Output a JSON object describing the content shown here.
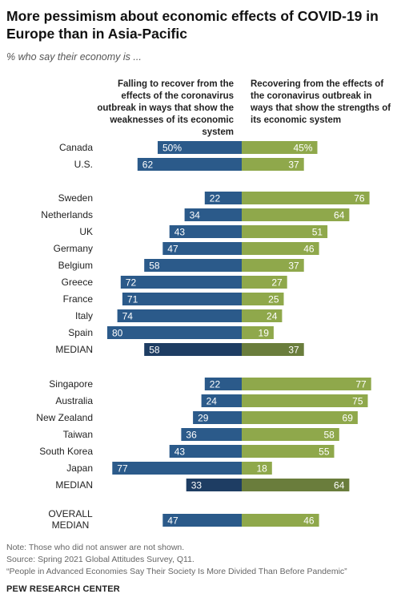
{
  "title": "More pessimism about economic effects of COVID-19 in Europe than in Asia-Pacific",
  "subtitle": "% who say their economy is ...",
  "note": "Note: Those who did not answer are not shown.",
  "source": "Source: Spring 2021 Global Attitudes Survey, Q11.",
  "report": "“People in Advanced Economies Say Their Society Is More Divided Than Before Pandemic”",
  "brand": "PEW RESEARCH CENTER",
  "colors": {
    "failing": "#2b5a8a",
    "failing_median": "#1e3d63",
    "recovering": "#8fa84b",
    "recovering_median": "#6a7d3c"
  },
  "chart_data": {
    "type": "bar",
    "series": [
      {
        "name": "Falling to recover from the effects of the coronavirus outbreak in ways that show the weaknesses of its economic system"
      },
      {
        "name": "Recovering from the effects of the coronavirus outbreak in ways that show the strengths of its economic system"
      }
    ],
    "groups": [
      {
        "rows": [
          {
            "label": "Canada",
            "failing": 50,
            "recovering": 45,
            "failing_label": "50%",
            "recovering_label": "45%"
          },
          {
            "label": "U.S.",
            "failing": 62,
            "recovering": 37,
            "failing_label": "62",
            "recovering_label": "37"
          }
        ]
      },
      {
        "rows": [
          {
            "label": "Sweden",
            "failing": 22,
            "recovering": 76,
            "failing_label": "22",
            "recovering_label": "76"
          },
          {
            "label": "Netherlands",
            "failing": 34,
            "recovering": 64,
            "failing_label": "34",
            "recovering_label": "64"
          },
          {
            "label": "UK",
            "failing": 43,
            "recovering": 51,
            "failing_label": "43",
            "recovering_label": "51"
          },
          {
            "label": "Germany",
            "failing": 47,
            "recovering": 46,
            "failing_label": "47",
            "recovering_label": "46"
          },
          {
            "label": "Belgium",
            "failing": 58,
            "recovering": 37,
            "failing_label": "58",
            "recovering_label": "37"
          },
          {
            "label": "Greece",
            "failing": 72,
            "recovering": 27,
            "failing_label": "72",
            "recovering_label": "27"
          },
          {
            "label": "France",
            "failing": 71,
            "recovering": 25,
            "failing_label": "71",
            "recovering_label": "25"
          },
          {
            "label": "Italy",
            "failing": 74,
            "recovering": 24,
            "failing_label": "74",
            "recovering_label": "24"
          },
          {
            "label": "Spain",
            "failing": 80,
            "recovering": 19,
            "failing_label": "80",
            "recovering_label": "19"
          },
          {
            "label": "MEDIAN",
            "failing": 58,
            "recovering": 37,
            "failing_label": "58",
            "recovering_label": "37",
            "median": true
          }
        ]
      },
      {
        "rows": [
          {
            "label": "Singapore",
            "failing": 22,
            "recovering": 77,
            "failing_label": "22",
            "recovering_label": "77"
          },
          {
            "label": "Australia",
            "failing": 24,
            "recovering": 75,
            "failing_label": "24",
            "recovering_label": "75"
          },
          {
            "label": "New Zealand",
            "failing": 29,
            "recovering": 69,
            "failing_label": "29",
            "recovering_label": "69"
          },
          {
            "label": "Taiwan",
            "failing": 36,
            "recovering": 58,
            "failing_label": "36",
            "recovering_label": "58"
          },
          {
            "label": "South Korea",
            "failing": 43,
            "recovering": 55,
            "failing_label": "43",
            "recovering_label": "55"
          },
          {
            "label": "Japan",
            "failing": 77,
            "recovering": 18,
            "failing_label": "77",
            "recovering_label": "18"
          },
          {
            "label": "MEDIAN",
            "failing": 33,
            "recovering": 64,
            "failing_label": "33",
            "recovering_label": "64",
            "median": true
          }
        ]
      },
      {
        "rows": [
          {
            "label": "OVERALL MEDIAN",
            "label_lines": [
              "OVERALL",
              "MEDIAN"
            ],
            "failing": 47,
            "recovering": 46,
            "failing_label": "47",
            "recovering_label": "46",
            "overall": true
          }
        ]
      }
    ]
  }
}
